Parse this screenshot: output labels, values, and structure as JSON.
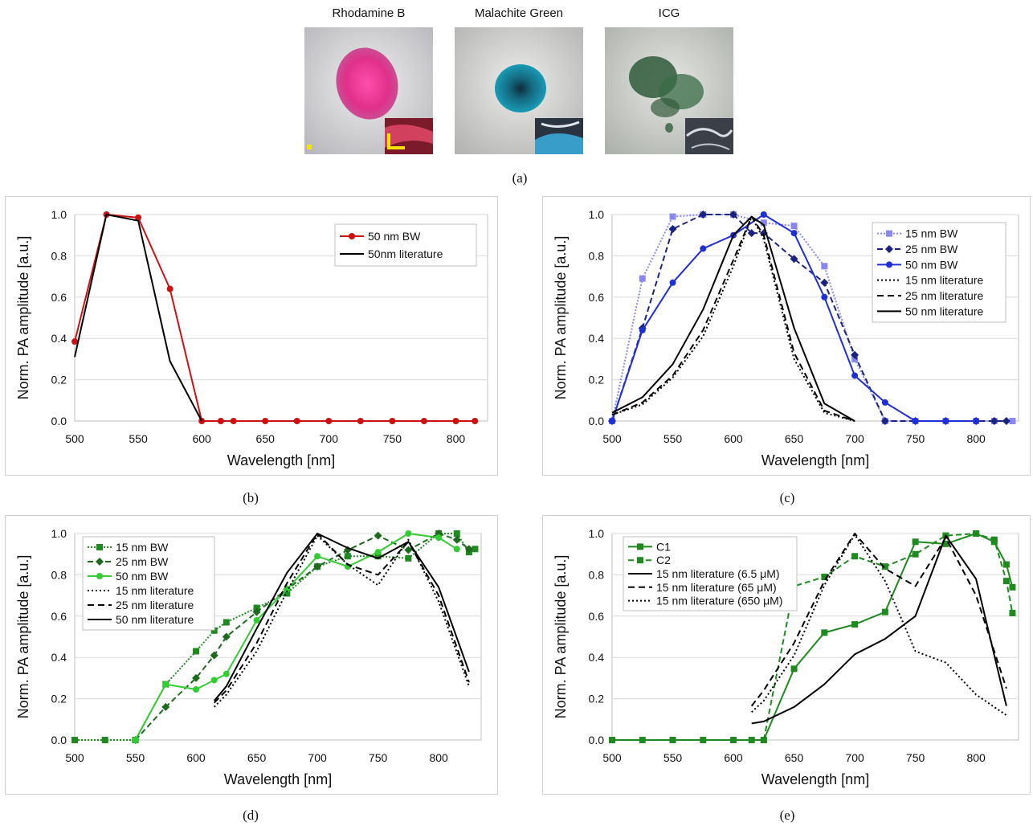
{
  "photos": [
    {
      "title": "Rhodamine B",
      "color": "#e0308a"
    },
    {
      "title": "Malachite Green",
      "color": "#1a8fa8"
    },
    {
      "title": "ICG",
      "color": "#2f5a3a"
    }
  ],
  "captions": {
    "a": "(a)",
    "b": "(b)",
    "c": "(c)",
    "d": "(d)",
    "e": "(e)"
  },
  "chart_data": [
    {
      "id": "b",
      "type": "line",
      "xlabel": "Wavelength [nm]",
      "ylabel": "Norm. PA amplitude [a.u.]",
      "xlim": [
        500,
        825
      ],
      "ylim": [
        0,
        1
      ],
      "xticks": [
        500,
        550,
        600,
        650,
        700,
        750,
        800
      ],
      "yticks": [
        "0.0",
        "0.2",
        "0.4",
        "0.6",
        "0.8",
        "1.0"
      ],
      "grid": "horizontal",
      "legend_position": "top-right",
      "series": [
        {
          "name": "50 nm BW",
          "color": "#cc1111",
          "dash": "",
          "marker": "circle",
          "x": [
            500,
            525,
            550,
            575,
            600,
            615,
            625,
            650,
            675,
            700,
            725,
            750,
            775,
            800,
            815
          ],
          "y": [
            0.385,
            1.0,
            0.985,
            0.64,
            0.0,
            0,
            0,
            0,
            0,
            0,
            0,
            0,
            0,
            0,
            0
          ]
        },
        {
          "name": "50nm literature",
          "color": "#000000",
          "dash": "",
          "marker": "none",
          "x": [
            500,
            525,
            550,
            575,
            600
          ],
          "y": [
            0.31,
            1.0,
            0.97,
            0.29,
            0.0
          ]
        }
      ]
    },
    {
      "id": "c",
      "type": "line",
      "xlabel": "Wavelength [nm]",
      "ylabel": "Norm. PA amplitude [a.u.]",
      "xlim": [
        500,
        835
      ],
      "ylim": [
        0,
        1
      ],
      "xticks": [
        500,
        550,
        600,
        650,
        700,
        750,
        800
      ],
      "yticks": [
        "0.0",
        "0.2",
        "0.4",
        "0.6",
        "0.8",
        "1.0"
      ],
      "grid": "horizontal",
      "legend_position": "top-right",
      "series": [
        {
          "name": "15 nm BW",
          "color": "#8888ee",
          "dash": "2,2",
          "marker": "square",
          "x": [
            500,
            525,
            550,
            575,
            600,
            625,
            650,
            675,
            700,
            725,
            750,
            775,
            800,
            815,
            830
          ],
          "y": [
            0.0,
            0.69,
            0.99,
            1.0,
            1.0,
            0.96,
            0.945,
            0.75,
            0.3,
            0.0,
            0,
            0,
            0,
            0,
            0
          ]
        },
        {
          "name": "25 nm BW",
          "color": "#1a237e",
          "dash": "7,4",
          "marker": "diamond",
          "x": [
            500,
            525,
            550,
            575,
            600,
            615,
            625,
            650,
            675,
            700,
            725,
            750,
            775,
            800,
            815,
            825
          ],
          "y": [
            0.0,
            0.45,
            0.93,
            1.0,
            1.0,
            0.91,
            0.91,
            0.785,
            0.67,
            0.32,
            0.0,
            0,
            0,
            0,
            0,
            0
          ]
        },
        {
          "name": "50 nm BW",
          "color": "#1f2fd6",
          "dash": "",
          "marker": "circle",
          "x": [
            500,
            525,
            550,
            575,
            600,
            625,
            650,
            675,
            700,
            725,
            750,
            775,
            800
          ],
          "y": [
            0.0,
            0.44,
            0.67,
            0.835,
            0.9,
            1.0,
            0.91,
            0.6,
            0.22,
            0.09,
            0.0,
            0,
            0
          ]
        },
        {
          "name": "15 nm literature",
          "color": "#000000",
          "dash": "2,3",
          "marker": "none",
          "x": [
            500,
            525,
            550,
            575,
            600,
            615,
            625,
            650,
            675,
            700
          ],
          "y": [
            0.03,
            0.08,
            0.21,
            0.41,
            0.75,
            0.99,
            0.88,
            0.3,
            0.04,
            0.0
          ]
        },
        {
          "name": "25 nm literature",
          "color": "#000000",
          "dash": "8,5",
          "marker": "none",
          "x": [
            500,
            525,
            550,
            575,
            600,
            615,
            625,
            650,
            675,
            700
          ],
          "y": [
            0.03,
            0.09,
            0.22,
            0.44,
            0.78,
            0.99,
            0.9,
            0.33,
            0.05,
            0.0
          ]
        },
        {
          "name": "50 nm literature",
          "color": "#000000",
          "dash": "",
          "marker": "none",
          "x": [
            500,
            525,
            550,
            575,
            600,
            615,
            625,
            650,
            675,
            700
          ],
          "y": [
            0.04,
            0.115,
            0.275,
            0.54,
            0.9,
            0.99,
            0.95,
            0.45,
            0.085,
            0.0
          ]
        }
      ]
    },
    {
      "id": "d",
      "type": "line",
      "xlabel": "Wavelength [nm]",
      "ylabel": "Norm. PA amplitude [a.u.]",
      "xlim": [
        500,
        835
      ],
      "ylim": [
        0,
        1
      ],
      "xticks": [
        500,
        550,
        600,
        650,
        700,
        750,
        800
      ],
      "yticks": [
        "0.0",
        "0.2",
        "0.4",
        "0.6",
        "0.8",
        "1.0"
      ],
      "grid": "horizontal",
      "legend_position": "top-left",
      "series": [
        {
          "name": "15 nm BW",
          "color": "#1f8a1f",
          "dash": "2,2",
          "marker": "square",
          "x": [
            500,
            525,
            550,
            575,
            600,
            615,
            625,
            650,
            675,
            700,
            725,
            750,
            775,
            800,
            815,
            825,
            830
          ],
          "y": [
            0.0,
            0.0,
            0.0,
            0.27,
            0.43,
            0.53,
            0.57,
            0.64,
            0.71,
            0.84,
            0.89,
            0.89,
            0.88,
            1.0,
            1.0,
            0.91,
            0.925
          ]
        },
        {
          "name": "25 nm BW",
          "color": "#1e6b1e",
          "dash": "7,4",
          "marker": "diamond",
          "x": [
            550,
            575,
            600,
            615,
            625,
            650,
            675,
            700,
            725,
            750,
            775,
            800,
            815,
            825
          ],
          "y": [
            0.0,
            0.16,
            0.3,
            0.41,
            0.5,
            0.62,
            0.73,
            0.84,
            0.92,
            0.99,
            0.92,
            1.0,
            0.97,
            0.925
          ]
        },
        {
          "name": "50 nm BW",
          "color": "#33cc33",
          "dash": "",
          "marker": "circle",
          "x": [
            550,
            575,
            600,
            615,
            625,
            650,
            675,
            700,
            725,
            750,
            775,
            800,
            815
          ],
          "y": [
            0.0,
            0.27,
            0.245,
            0.29,
            0.32,
            0.58,
            0.73,
            0.89,
            0.84,
            0.91,
            1.0,
            0.98,
            0.925
          ]
        },
        {
          "name": "15 nm literature",
          "color": "#000000",
          "dash": "2,3",
          "marker": "none",
          "x": [
            615,
            625,
            650,
            675,
            700,
            725,
            750,
            775,
            800,
            825
          ],
          "y": [
            0.16,
            0.22,
            0.43,
            0.72,
            0.99,
            0.85,
            0.75,
            0.97,
            0.67,
            0.26
          ]
        },
        {
          "name": "25 nm literature",
          "color": "#000000",
          "dash": "8,5",
          "marker": "none",
          "x": [
            615,
            625,
            650,
            675,
            700,
            725,
            750,
            775,
            800,
            825
          ],
          "y": [
            0.18,
            0.24,
            0.47,
            0.76,
            1.0,
            0.85,
            0.8,
            0.96,
            0.7,
            0.28
          ]
        },
        {
          "name": "50 nm literature",
          "color": "#000000",
          "dash": "",
          "marker": "none",
          "x": [
            615,
            625,
            650,
            675,
            700,
            725,
            750,
            775,
            800,
            825
          ],
          "y": [
            0.19,
            0.26,
            0.54,
            0.81,
            1.0,
            0.93,
            0.88,
            0.96,
            0.74,
            0.33
          ]
        }
      ]
    },
    {
      "id": "e",
      "type": "line",
      "xlabel": "Wavelength [nm]",
      "ylabel": "Norm. PA amplitude [a.u.]",
      "xlim": [
        500,
        835
      ],
      "ylim": [
        0,
        1
      ],
      "xticks": [
        500,
        550,
        600,
        650,
        700,
        750,
        800
      ],
      "yticks": [
        "0.0",
        "0.2",
        "0.4",
        "0.6",
        "0.8",
        "1.0"
      ],
      "grid": "horizontal",
      "legend_position": "top-left",
      "series": [
        {
          "name": "C1",
          "color": "#1f8a1f",
          "dash": "",
          "marker": "square",
          "x": [
            500,
            525,
            550,
            575,
            600,
            615,
            625,
            650,
            675,
            700,
            725,
            750,
            775,
            800,
            815,
            825,
            830
          ],
          "y": [
            0,
            0,
            0,
            0,
            0,
            0,
            0.0,
            0.345,
            0.52,
            0.56,
            0.62,
            0.96,
            0.95,
            1.0,
            0.96,
            0.85,
            0.74
          ]
        },
        {
          "name": "C2",
          "color": "#1f8a1f",
          "dash": "7,4",
          "marker": "square",
          "x": [
            625,
            650,
            675,
            700,
            725,
            750,
            775,
            800,
            815,
            825,
            830
          ],
          "y": [
            0.0,
            0.745,
            0.79,
            0.89,
            0.84,
            0.9,
            0.99,
            1.0,
            0.97,
            0.77,
            0.615
          ]
        },
        {
          "name": "15 nm literature (6.5 μM)",
          "color": "#000000",
          "dash": "",
          "marker": "none",
          "x": [
            615,
            625,
            650,
            675,
            700,
            725,
            750,
            775,
            800,
            825
          ],
          "y": [
            0.08,
            0.09,
            0.16,
            0.27,
            0.415,
            0.49,
            0.6,
            0.99,
            0.78,
            0.165
          ]
        },
        {
          "name": "15 nm literature (65 μM)",
          "color": "#000000",
          "dash": "8,5",
          "marker": "none",
          "x": [
            615,
            625,
            650,
            675,
            700,
            725,
            750,
            775,
            800,
            825
          ],
          "y": [
            0.165,
            0.24,
            0.47,
            0.77,
            1.0,
            0.83,
            0.745,
            0.98,
            0.7,
            0.25
          ]
        },
        {
          "name": "15 nm literature (650 μM)",
          "color": "#000000",
          "dash": "2,3",
          "marker": "none",
          "x": [
            615,
            625,
            650,
            675,
            700,
            725,
            750,
            775,
            800,
            825
          ],
          "y": [
            0.135,
            0.19,
            0.41,
            0.75,
            0.995,
            0.77,
            0.43,
            0.375,
            0.22,
            0.12
          ]
        }
      ]
    }
  ]
}
